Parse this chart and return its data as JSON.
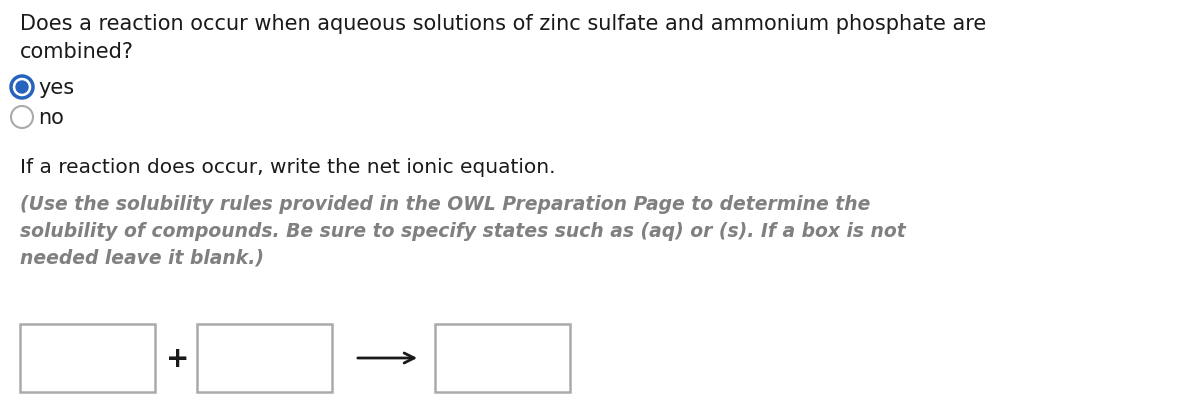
{
  "background_color": "#ffffff",
  "question_text_line1": "Does a reaction occur when aqueous solutions of zinc sulfate and ammonium phosphate are",
  "question_text_line2": "combined?",
  "radio_yes_label": "yes",
  "radio_no_label": "no",
  "instruction_text": "If a reaction does occur, write the net ionic equation.",
  "hint_line1": "(Use the solubility rules provided in the OWL Preparation Page to determine the",
  "hint_line2": "solubility of compounds. Be sure to specify states such as (aq) or (s). If a box is not",
  "hint_line3": "needed leave it blank.)",
  "hint_color": "#808080",
  "radio_selected_color": "#2563be",
  "radio_unselected_color": "#aaaaaa",
  "text_color": "#1a1a1a",
  "box_border_color": "#aaaaaa",
  "figwidth": 12.0,
  "figheight": 4.14,
  "dpi": 100
}
